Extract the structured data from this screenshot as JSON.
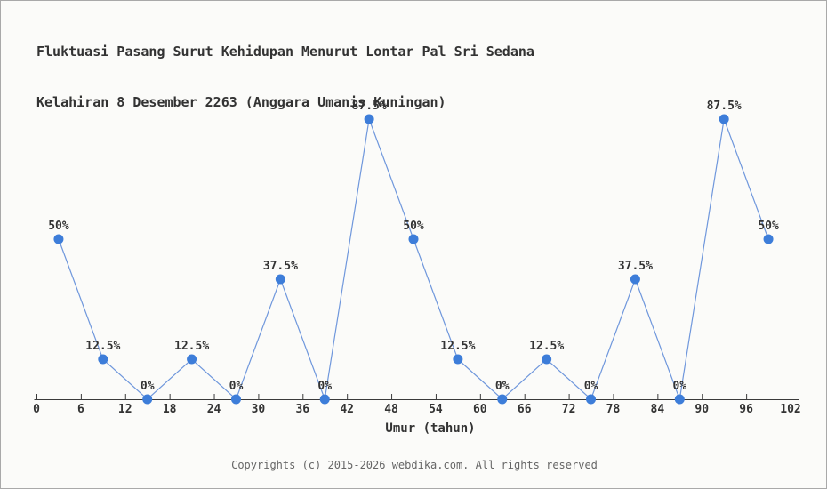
{
  "title": {
    "line1": "Fluktuasi Pasang Surut Kehidupan Menurut Lontar Pal Sri Sedana",
    "line2": "Kelahiran 8 Desember 2263 (Anggara Umanis Kuningan)"
  },
  "footer": "Copyrights (c) 2015-2026 webdika.com. All rights reserved",
  "chart_data": {
    "type": "line",
    "title": "Fluktuasi Pasang Surut Kehidupan Menurut Lontar Pal Sri Sedana Kelahiran 8 Desember 2263 (Anggara Umanis Kuningan)",
    "xlabel": "Umur (tahun)",
    "ylabel": "",
    "x": [
      3,
      9,
      15,
      21,
      27,
      33,
      39,
      45,
      51,
      57,
      63,
      69,
      75,
      81,
      87,
      93,
      99
    ],
    "values": [
      50,
      12.5,
      0,
      12.5,
      0,
      37.5,
      0,
      87.5,
      50,
      12.5,
      0,
      12.5,
      0,
      37.5,
      0,
      87.5,
      50
    ],
    "point_labels": [
      "50%",
      "12.5%",
      "0%",
      "12.5%",
      "0%",
      "37.5%",
      "0%",
      "87.5%",
      "50%",
      "12.5%",
      "0%",
      "12.5%",
      "0%",
      "37.5%",
      "0%",
      "87.5%",
      "50%"
    ],
    "x_ticks": [
      0,
      6,
      12,
      18,
      24,
      30,
      36,
      42,
      48,
      54,
      60,
      66,
      72,
      78,
      84,
      90,
      96,
      102
    ],
    "xlim": [
      0,
      102
    ],
    "ylim": [
      0,
      100
    ],
    "grid": false,
    "legend": null,
    "y_axis_shown": false,
    "colors": {
      "line": "#6f97dc",
      "marker": "#3d7dd9",
      "axis": "#3a3a3a",
      "text": "#333333",
      "footer_text": "#666666",
      "background": "#fbfbf9",
      "border": "#a9a9a9"
    }
  }
}
